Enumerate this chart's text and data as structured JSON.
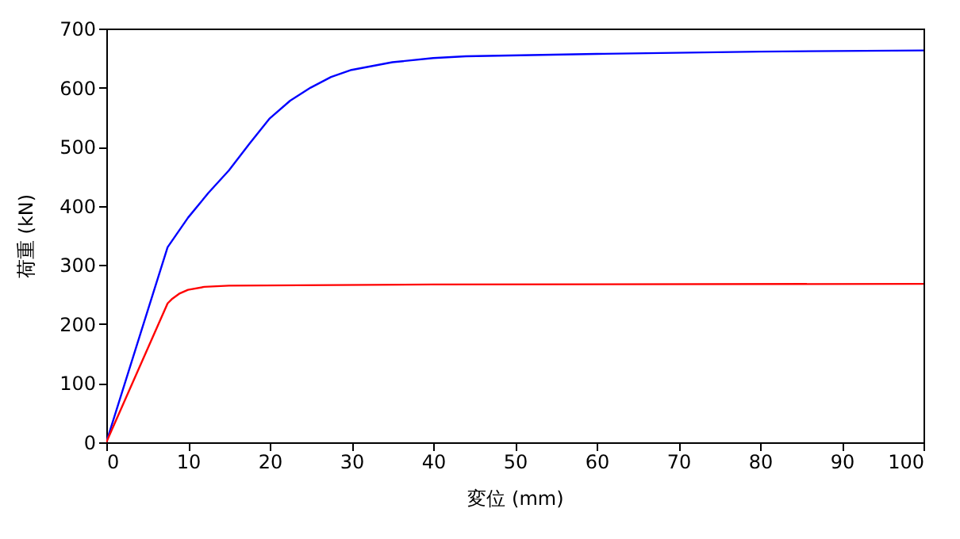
{
  "chart_data": {
    "type": "line",
    "xlabel": "変位 (mm)",
    "ylabel": "荷重 (kN)",
    "xlim": [
      0,
      100
    ],
    "ylim": [
      0,
      700
    ],
    "xticks": [
      0,
      10,
      20,
      30,
      40,
      50,
      60,
      70,
      80,
      90,
      100
    ],
    "yticks": [
      0,
      100,
      200,
      300,
      400,
      500,
      600,
      700
    ],
    "grid": false,
    "marker": "none",
    "line_style": "solid",
    "series": [
      {
        "color": "#0000ff",
        "x": [
          0,
          7.5,
          10,
          12.5,
          15,
          17.5,
          20,
          22.5,
          25,
          27.5,
          30,
          35,
          40,
          44,
          60,
          80,
          100
        ],
        "values": [
          0,
          330,
          380,
          422,
          460,
          505,
          548,
          578,
          600,
          618,
          630,
          643,
          650,
          653,
          657,
          661,
          663
        ]
      },
      {
        "color": "#ff0000",
        "x": [
          0,
          7.5,
          8,
          9,
          10,
          12,
          15,
          40,
          100
        ],
        "values": [
          0,
          235,
          242,
          252,
          258,
          263,
          265,
          267,
          268
        ]
      }
    ]
  }
}
